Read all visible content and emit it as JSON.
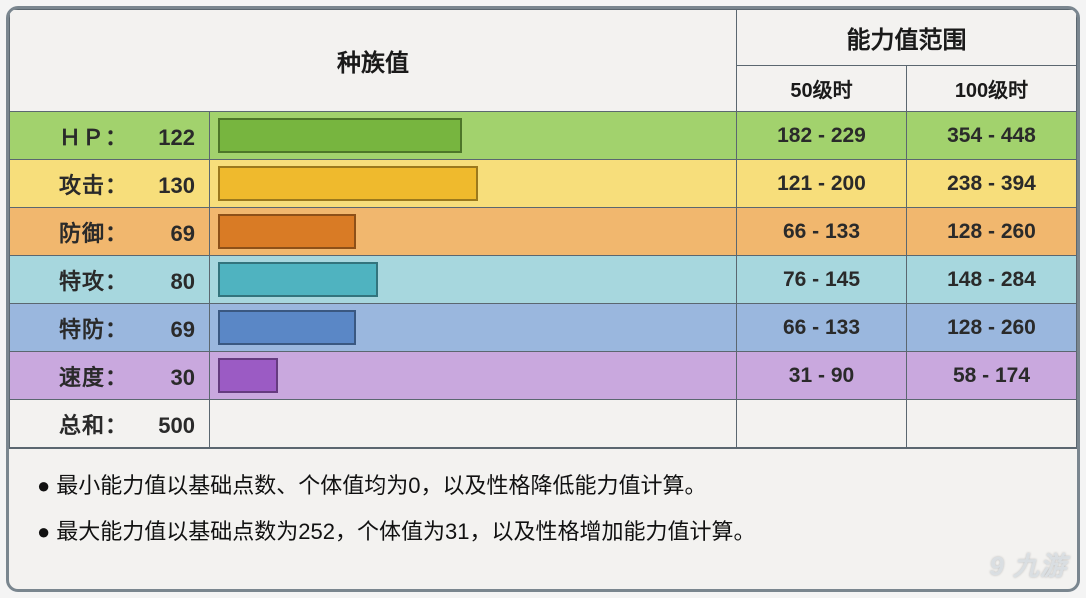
{
  "header": {
    "base_stats_title": "种族值",
    "range_title": "能力值范围",
    "level50_label": "50级时",
    "level100_label": "100级时"
  },
  "bar": {
    "max_value": 255,
    "border_color": "#5b6770"
  },
  "stats": [
    {
      "label": "ＨＰ：",
      "value": 122,
      "row_bg": "#a2d26d",
      "bar_color": "#77b53f",
      "range50": "182 - 229",
      "range100": "354 - 448"
    },
    {
      "label": "攻击：",
      "value": 130,
      "row_bg": "#f7de7b",
      "bar_color": "#efba2d",
      "range50": "121 - 200",
      "range100": "238 - 394"
    },
    {
      "label": "防御：",
      "value": 69,
      "row_bg": "#f1b76e",
      "bar_color": "#d97b25",
      "range50": "66 - 133",
      "range100": "128 - 260"
    },
    {
      "label": "特攻：",
      "value": 80,
      "row_bg": "#a7d7de",
      "bar_color": "#4fb3c0",
      "range50": "76 - 145",
      "range100": "148 - 284"
    },
    {
      "label": "特防：",
      "value": 69,
      "row_bg": "#9ab7de",
      "bar_color": "#5a87c6",
      "range50": "66 - 133",
      "range100": "128 - 260"
    },
    {
      "label": "速度：",
      "value": 30,
      "row_bg": "#c9a8de",
      "bar_color": "#9b5bc4",
      "range50": "31 - 90",
      "range100": "58 - 174"
    }
  ],
  "total": {
    "label": "总和：",
    "value": 500,
    "row_bg": "#f3f2f0"
  },
  "notes": {
    "min_note": "最小能力值以基础点数、个体值均为0，以及性格降低能力值计算。",
    "max_note": "最大能力值以基础点数为252，个体值为31，以及性格增加能力值计算。"
  },
  "watermark": "9 九游"
}
